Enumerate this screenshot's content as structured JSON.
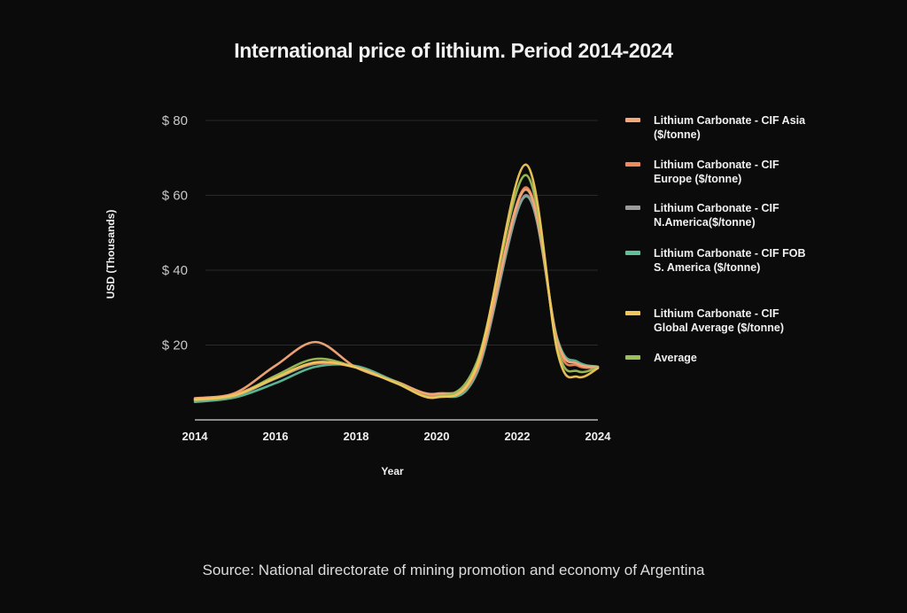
{
  "title": "International price of lithium. Period 2014-2024",
  "source": "Source: National directorate of mining promotion and economy of Argentina",
  "chart_data": {
    "type": "line",
    "title": "International price of lithium. Period 2014-2024",
    "xlabel": "Year",
    "ylabel": "USD (Thousands)",
    "xlim": [
      2014,
      2024
    ],
    "ylim": [
      0,
      80
    ],
    "x_ticks": [
      "2014",
      "2016",
      "2018",
      "2020",
      "2022",
      "2024"
    ],
    "y_ticks": [
      {
        "value": 20,
        "label": "$ 20"
      },
      {
        "value": 40,
        "label": "$ 40"
      },
      {
        "value": 60,
        "label": "$ 60"
      },
      {
        "value": 80,
        "label": "$ 80"
      }
    ],
    "grid": true,
    "legend_position": "right",
    "x": [
      2014,
      2015,
      2016,
      2017,
      2018,
      2019,
      2020,
      2021,
      2022.2,
      2023,
      2023.5,
      2024
    ],
    "series": [
      {
        "name": "Lithium Carbonate - CIF Asia ($/tonne)",
        "color": "#f5a97a",
        "values": [
          5.8,
          7.2,
          14.5,
          20.8,
          14.0,
          10.2,
          7.0,
          14.0,
          61.5,
          21.0,
          15.0,
          14.2
        ]
      },
      {
        "name": "Lithium Carbonate - CIF Europe ($/tonne)",
        "color": "#f08a5d",
        "values": [
          5.6,
          6.8,
          11.5,
          15.2,
          14.0,
          10.0,
          6.8,
          13.5,
          62.1,
          20.0,
          14.5,
          14.0
        ]
      },
      {
        "name": "Lithium Carbonate - CIF N.America($/tonne)",
        "color": "#9a9a9a",
        "values": [
          5.2,
          6.4,
          11.0,
          15.0,
          14.2,
          10.0,
          6.6,
          13.0,
          60.0,
          21.0,
          15.0,
          14.0
        ]
      },
      {
        "name": "Lithium Carbonate - CIF FOB S. America ($/tonne)",
        "color": "#5fc09a",
        "values": [
          4.8,
          6.0,
          9.8,
          14.2,
          14.4,
          10.2,
          6.4,
          12.5,
          59.7,
          21.5,
          15.5,
          14.2
        ]
      },
      {
        "name": "Lithium Carbonate - CIF Global Average ($/tonne)",
        "color": "#f1c75a",
        "values": [
          5.4,
          6.6,
          11.2,
          15.4,
          14.0,
          9.8,
          6.0,
          14.5,
          68.2,
          18.0,
          11.5,
          13.8
        ]
      },
      {
        "name": "Average",
        "color": "#9bbf5a",
        "values": [
          5.3,
          6.5,
          11.8,
          16.3,
          14.0,
          10.0,
          6.2,
          15.5,
          65.4,
          19.0,
          13.0,
          14.0
        ]
      }
    ]
  },
  "legend": [
    {
      "label": "Lithium Carbonate - CIF Asia ($/tonne)",
      "color": "#f5a97a"
    },
    {
      "label": "Lithium Carbonate - CIF Europe ($/tonne)",
      "color": "#f08a5d"
    },
    {
      "label": "Lithium Carbonate - CIF N.America($/tonne)",
      "color": "#9a9a9a"
    },
    {
      "label": "Lithium Carbonate - CIF FOB S. America ($/tonne)",
      "color": "#5fc09a"
    },
    {
      "label": "Lithium Carbonate - CIF Global Average ($/tonne)",
      "color": "#f1c75a"
    },
    {
      "label": "Average",
      "color": "#9bbf5a"
    }
  ]
}
